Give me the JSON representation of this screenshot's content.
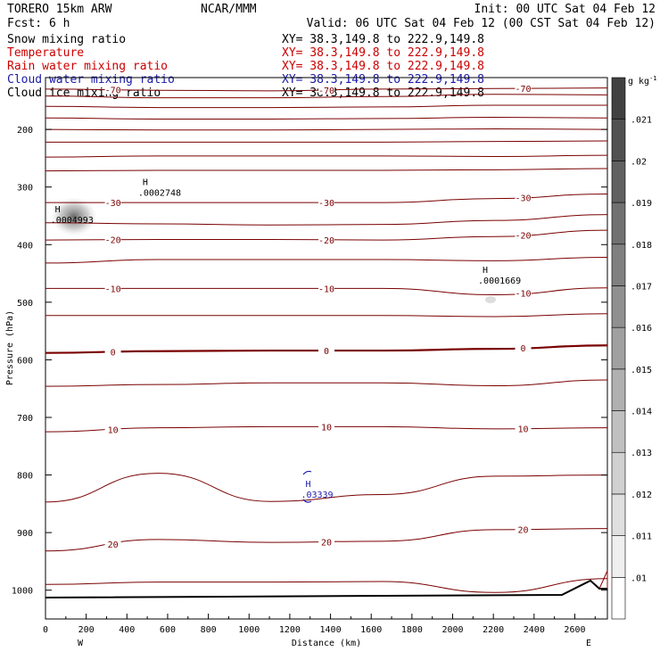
{
  "header": {
    "model": "TORERO  15km ARW",
    "org": "NCAR/MMM",
    "init": "Init: 00 UTC Sat 04 Feb 12",
    "fcst": "Fcst:    6 h",
    "valid": "Valid: 06 UTC Sat 04 Feb 12 (00 CST Sat 04 Feb 12)"
  },
  "fields": [
    {
      "name": "Snow mixing ratio",
      "xy": "XY=  38.3,149.8 to 222.9,149.8",
      "color": "#000000",
      "xycolor": "#000000"
    },
    {
      "name": "Temperature",
      "xy": "XY=  38.3,149.8 to 222.9,149.8",
      "color": "#cc0000",
      "xycolor": "#cc0000"
    },
    {
      "name": "Rain water mixing ratio",
      "xy": "XY=  38.3,149.8 to 222.9,149.8",
      "color": "#cc0000",
      "xycolor": "#cc0000"
    },
    {
      "name": "Cloud water mixing ratio",
      "xy": "XY=  38.3,149.8 to 222.9,149.8",
      "color": "#1a1aaa",
      "xycolor": "#1a1aaa"
    },
    {
      "name": "Cloud ice mixing ratio",
      "xy": "XY=  38.3,149.8 to 222.9,149.8",
      "color": "#000000",
      "xycolor": "#000000"
    }
  ],
  "chart_data": {
    "type": "contour-cross-section",
    "xlabel": "Distance (km)",
    "ylabel": "Pressure (hPa)",
    "xlim": [
      0,
      2760
    ],
    "ylim": [
      1050,
      110
    ],
    "x_ticks": [
      0,
      200,
      400,
      600,
      800,
      1000,
      1200,
      1400,
      1600,
      1800,
      2000,
      2200,
      2400,
      2600
    ],
    "y_ticks": [
      200,
      300,
      400,
      500,
      600,
      700,
      800,
      900,
      1000
    ],
    "end_labels": {
      "left": "W",
      "right": "E"
    },
    "colorbar": {
      "unit": "g kg",
      "unit_exp": "-1",
      "levels": [
        ".01",
        ".011",
        ".012",
        ".013",
        ".014",
        ".015",
        ".016",
        ".017",
        ".018",
        ".019",
        ".02",
        ".021"
      ]
    },
    "isotherms": [
      {
        "label": "-70",
        "p": [
          130,
          132,
          133,
          130,
          129,
          128
        ]
      },
      {
        "label": "",
        "p": [
          142,
          145,
          145,
          143,
          139,
          140
        ]
      },
      {
        "label": "",
        "p": [
          160,
          162,
          162,
          161,
          158,
          158
        ]
      },
      {
        "label": "",
        "p": [
          180,
          182,
          182,
          181,
          179,
          180
        ]
      },
      {
        "label": "",
        "p": [
          200,
          201,
          201,
          200,
          199,
          200
        ]
      },
      {
        "label": "",
        "p": [
          222,
          222,
          222,
          222,
          221,
          220
        ]
      },
      {
        "label": "",
        "p": [
          248,
          246,
          246,
          246,
          247,
          245
        ]
      },
      {
        "label": "",
        "p": [
          272,
          271,
          271,
          271,
          270,
          268
        ]
      },
      {
        "label": "-30",
        "p": [
          327,
          327,
          327,
          327,
          320,
          312
        ]
      },
      {
        "label": "",
        "p": [
          362,
          364,
          366,
          365,
          358,
          348
        ]
      },
      {
        "label": "-20",
        "p": [
          392,
          391,
          391,
          392,
          386,
          375
        ]
      },
      {
        "label": "",
        "p": [
          432,
          426,
          426,
          426,
          428,
          422
        ]
      },
      {
        "label": "-10",
        "p": [
          476,
          476,
          476,
          476,
          487,
          475
        ]
      },
      {
        "label": "",
        "p": [
          523,
          523,
          523,
          523,
          525,
          520
        ]
      },
      {
        "label": "0",
        "p": [
          588,
          585,
          584,
          584,
          581,
          575
        ]
      },
      {
        "label": "",
        "p": [
          646,
          643,
          640,
          640,
          645,
          635
        ]
      },
      {
        "label": "10",
        "p": [
          725,
          718,
          716,
          716,
          720,
          718
        ]
      },
      {
        "label": "",
        "p": [
          847,
          797,
          846,
          834,
          802,
          800
        ]
      },
      {
        "label": "20",
        "p": [
          932,
          912,
          917,
          915,
          895,
          893
        ]
      },
      {
        "label": "",
        "p": [
          990,
          986,
          986,
          985,
          1004,
          980
        ]
      }
    ],
    "extrema": [
      {
        "mark": "H",
        "value": ".0002748",
        "x_km": 490,
        "p": 303,
        "color": "#000000"
      },
      {
        "mark": "H",
        "value": ".0004993",
        "x_km": 60,
        "p": 350,
        "color": "#000000"
      },
      {
        "mark": "H",
        "value": ".0001669",
        "x_km": 2160,
        "p": 455,
        "color": "#000000"
      },
      {
        "mark": "H",
        "value": ".03339",
        "x_km": 1290,
        "p": 827,
        "color": "#1a1aaa"
      }
    ],
    "ground_pressure_hpa": 1012
  }
}
